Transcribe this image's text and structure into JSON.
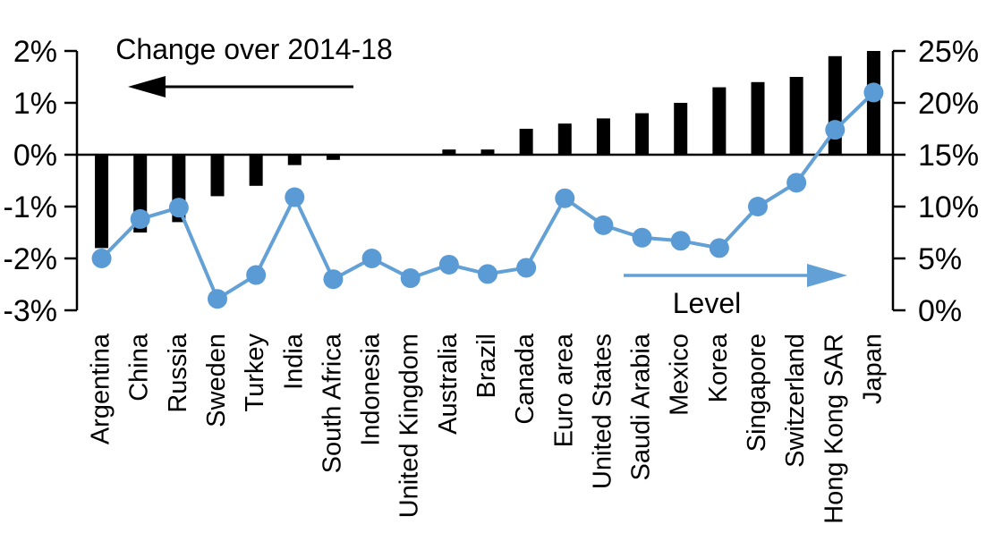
{
  "annotations": {
    "change_label": "Change over 2014-18",
    "level_label": "Level"
  },
  "colors": {
    "bar": "#000000",
    "line": "#62A0D6",
    "marker": "#5B9BD5",
    "axis": "#000000",
    "background": "#FFFFFF"
  },
  "chart_data": {
    "type": "bar",
    "subtype": "dual-axis combo: vertical bars on left axis plus line with circular markers on right axis",
    "title": "",
    "xlabel": "",
    "ylabel_left": "Change over 2014-18",
    "ylabel_right": "Level",
    "grid": false,
    "legend_position": "in-plot text annotations with directional arrows",
    "categories": [
      "Argentina",
      "China",
      "Russia",
      "Sweden",
      "Turkey",
      "India",
      "South Africa",
      "Indonesia",
      "United Kingdom",
      "Australia",
      "Brazil",
      "Canada",
      "Euro area",
      "United States",
      "Saudi Arabia",
      "Mexico",
      "Korea",
      "Singapore",
      "Switzerland",
      "Hong Kong SAR",
      "Japan"
    ],
    "series": [
      {
        "name": "Change over 2014-18",
        "type": "bar",
        "axis": "left",
        "unit": "%",
        "values": [
          -1.8,
          -1.5,
          -1.3,
          -0.8,
          -0.6,
          -0.2,
          -0.1,
          0.0,
          0.0,
          0.1,
          0.1,
          0.5,
          0.6,
          0.7,
          0.8,
          1.0,
          1.3,
          1.4,
          1.5,
          1.9,
          2.0
        ]
      },
      {
        "name": "Level",
        "type": "line",
        "axis": "right",
        "unit": "%",
        "values": [
          5.0,
          8.8,
          9.9,
          1.1,
          3.4,
          10.9,
          3.0,
          5.0,
          3.1,
          4.4,
          3.5,
          4.1,
          10.8,
          8.2,
          7.0,
          6.7,
          6.0,
          10.0,
          12.3,
          17.4,
          21.0
        ]
      }
    ],
    "left_axis": {
      "min": -3,
      "max": 2,
      "tick_values": [
        2,
        1,
        0,
        -1,
        -2,
        -3
      ],
      "tick_labels": [
        "2%",
        "1%",
        "0%",
        "-1%",
        "-2%",
        "-3%"
      ]
    },
    "right_axis": {
      "min": 0,
      "max": 25,
      "tick_values": [
        25,
        20,
        15,
        10,
        5,
        0
      ],
      "tick_labels": [
        "25%",
        "20%",
        "15%",
        "10%",
        "5%",
        "0%"
      ]
    }
  }
}
